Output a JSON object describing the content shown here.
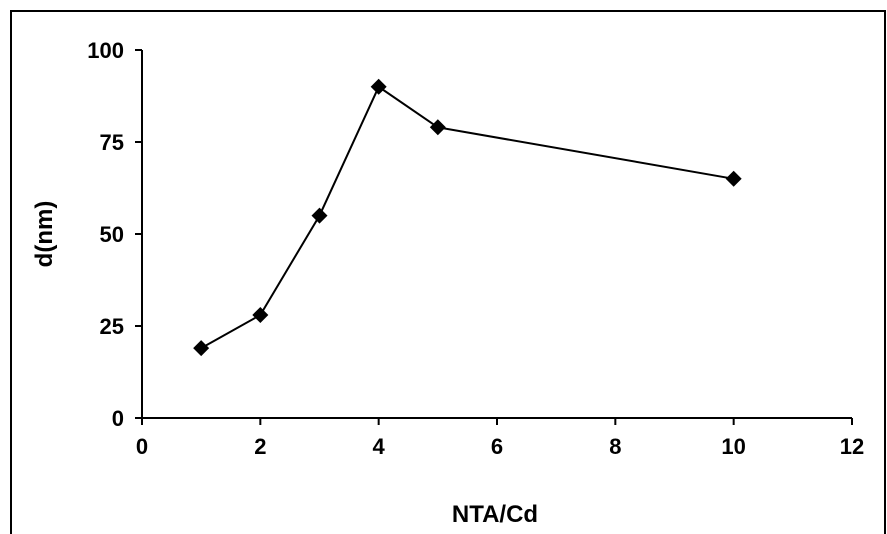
{
  "chart_data": {
    "type": "line",
    "xlabel": "NTA/Cd",
    "ylabel": "d(nm)",
    "xlim": [
      0,
      12
    ],
    "ylim": [
      0,
      100
    ],
    "x_ticks": [
      0,
      2,
      4,
      6,
      8,
      10,
      12
    ],
    "y_ticks": [
      0,
      25,
      50,
      75,
      100
    ],
    "grid": false,
    "series": [
      {
        "x": [
          1,
          2,
          3,
          4,
          5,
          10
        ],
        "y": [
          19,
          28,
          55,
          90,
          79,
          65
        ],
        "marker": "diamond",
        "color": "#000000"
      }
    ]
  }
}
